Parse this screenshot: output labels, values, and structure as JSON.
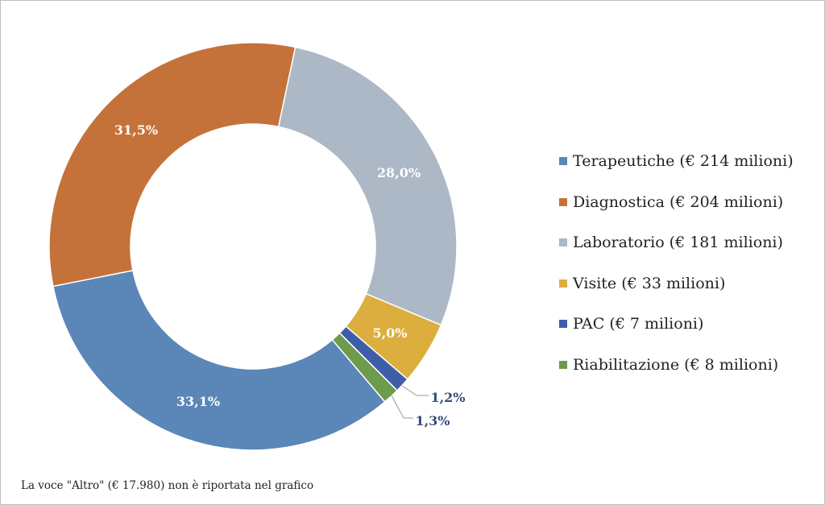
{
  "chart_data": {
    "type": "pie",
    "variant": "donut",
    "title": "",
    "categories": [
      "Terapeutiche",
      "Diagnostica",
      "Laboratorio",
      "Visite",
      "PAC",
      "Riabilitazione"
    ],
    "values_percent": [
      33.1,
      31.5,
      28.0,
      5.0,
      1.2,
      1.3
    ],
    "values_million_eur": [
      214,
      204,
      181,
      33,
      7,
      8
    ],
    "data_labels": [
      "33,1%",
      "31,5%",
      "28,0%",
      "5,0%",
      "1,2%",
      "1,3%"
    ],
    "legend_labels": [
      "Terapeutiche (€ 214 milioni)",
      "Diagnostica (€ 204 milioni)",
      "Laboratorio (€ 181 milioni)",
      "Visite (€ 33 milioni)",
      "PAC (€ 7 milioni)",
      "Riabilitazione (€ 8 milioni)"
    ],
    "colors": [
      "#5b86b8",
      "#c5723a",
      "#adb8c7",
      "#dcae3e",
      "#3f5ea8",
      "#6e9a4b"
    ],
    "legend_position": "right",
    "draw_order": [
      2,
      3,
      4,
      5,
      0,
      1
    ]
  },
  "footnote": "La voce \"Altro\" (€ 17.980) non è riportata nel grafico"
}
